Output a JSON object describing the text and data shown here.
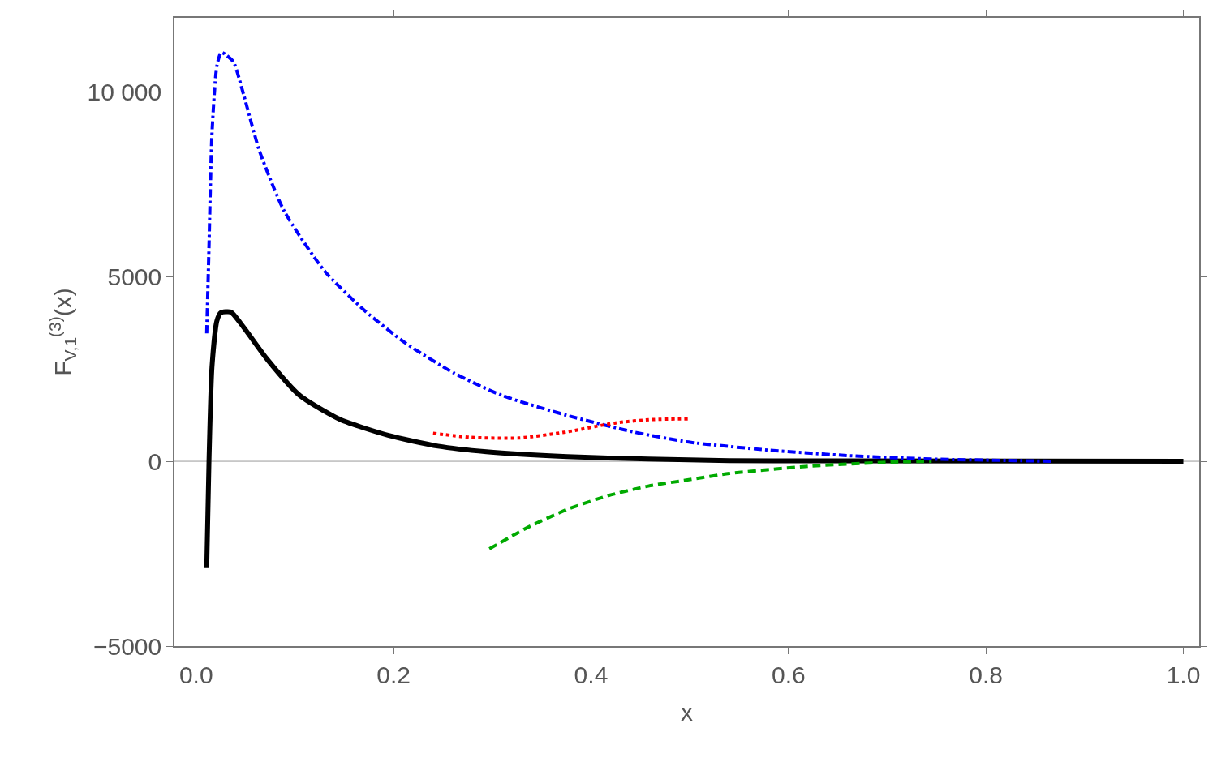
{
  "chart_data": {
    "type": "line",
    "xlabel": "x",
    "ylabel": "F$_{V,1}$$^{(3)}$(x)",
    "xlim": [
      -0.022,
      1.016
    ],
    "ylim": [
      -5000,
      12000
    ],
    "xticks": [
      {
        "value": 0,
        "label": "0.0"
      },
      0.2,
      0.4,
      0.6,
      0.8,
      {
        "value": 1,
        "label": "1.0"
      }
    ],
    "yticks": [
      {
        "value": -5000,
        "label": "−5000"
      },
      0,
      5000,
      {
        "value": 10000,
        "label": "10 000"
      }
    ],
    "grid": false,
    "ref_lines": [
      {
        "axis": "y",
        "value": 0,
        "color": "#999999"
      }
    ],
    "series": [
      {
        "color": "#000000",
        "line_style": "solid",
        "x": [
          0.0107,
          0.013,
          0.016,
          0.021,
          0.025,
          0.035,
          0.048,
          0.072,
          0.105,
          0.146,
          0.195,
          0.245,
          0.294,
          0.376,
          0.458,
          0.54,
          0.622,
          1.0
        ],
        "values": [
          -2890,
          0,
          2540,
          3800,
          4020,
          4040,
          3630,
          2760,
          1780,
          1130,
          700,
          410,
          260,
          130,
          60,
          20,
          10,
          0
        ]
      },
      {
        "color": "#0000ff",
        "line_style": "dashdot",
        "x": [
          0.0107,
          0.013,
          0.016,
          0.021,
          0.0255,
          0.031,
          0.038,
          0.048,
          0.064,
          0.089,
          0.13,
          0.171,
          0.212,
          0.261,
          0.31,
          0.376,
          0.442,
          0.499,
          0.581,
          0.663,
          0.745,
          0.828,
          0.869
        ],
        "values": [
          3460,
          5800,
          8850,
          10700,
          11070,
          10980,
          10800,
          9930,
          8410,
          6780,
          5150,
          4070,
          3200,
          2390,
          1780,
          1240,
          800,
          520,
          300,
          150,
          60,
          20,
          0
        ]
      },
      {
        "color": "#ff0000",
        "line_style": "dotted",
        "x": [
          0.24,
          0.277,
          0.327,
          0.376,
          0.425,
          0.462,
          0.499
        ],
        "values": [
          760,
          650,
          630,
          800,
          1040,
          1130,
          1150
        ]
      },
      {
        "color": "#00aa00",
        "line_style": "dashed",
        "x": [
          0.297,
          0.335,
          0.376,
          0.417,
          0.458,
          0.499,
          0.54,
          0.622,
          0.704,
          0.745
        ],
        "values": [
          -2370,
          -1800,
          -1300,
          -930,
          -670,
          -500,
          -330,
          -130,
          -20,
          0
        ]
      }
    ]
  }
}
